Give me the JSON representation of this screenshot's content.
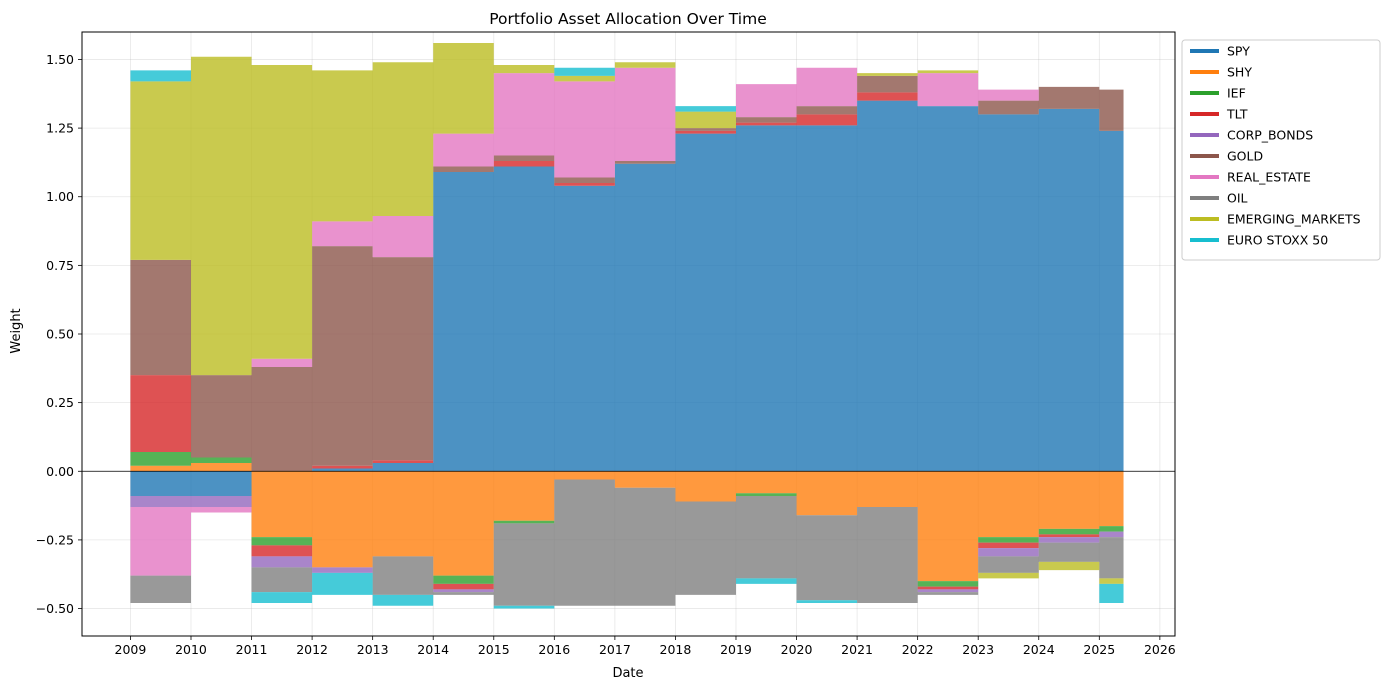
{
  "chart_data": {
    "type": "area",
    "title": "Portfolio Asset Allocation Over Time",
    "xlabel": "Date",
    "ylabel": "Weight",
    "xlim": [
      2008.2,
      2026.25
    ],
    "ylim": [
      -0.6,
      1.6
    ],
    "x_ticks": [
      "2009",
      "2010",
      "2011",
      "2012",
      "2013",
      "2014",
      "2015",
      "2016",
      "2017",
      "2018",
      "2019",
      "2020",
      "2021",
      "2022",
      "2023",
      "2024",
      "2025",
      "2026"
    ],
    "y_ticks": [
      "−0.50",
      "−0.25",
      "0.00",
      "0.25",
      "0.50",
      "0.75",
      "1.00",
      "1.25",
      "1.50"
    ],
    "grid": true,
    "legend_position": "outside-top-right",
    "x": [
      2009.0,
      2010.0,
      2011.0,
      2012.0,
      2013.0,
      2014.0,
      2015.0,
      2016.0,
      2017.0,
      2018.0,
      2019.0,
      2020.0,
      2021.0,
      2022.0,
      2023.0,
      2024.0,
      2025.0,
      2025.4
    ],
    "series": [
      {
        "name": "SPY",
        "color": "#1f77b4",
        "values": [
          -0.09,
          -0.09,
          0.0,
          0.01,
          0.03,
          1.09,
          1.11,
          1.04,
          1.12,
          1.23,
          1.26,
          1.26,
          1.35,
          1.33,
          1.3,
          1.32,
          1.24,
          1.24
        ]
      },
      {
        "name": "SHY",
        "color": "#ff7f0e",
        "values": [
          0.02,
          0.03,
          -0.24,
          -0.35,
          -0.31,
          -0.38,
          -0.18,
          -0.03,
          -0.06,
          -0.11,
          -0.08,
          -0.16,
          -0.13,
          -0.4,
          -0.24,
          -0.21,
          -0.2,
          -0.2
        ]
      },
      {
        "name": "IEF",
        "color": "#2ca02c",
        "values": [
          0.05,
          0.02,
          -0.03,
          0.0,
          0.0,
          -0.03,
          -0.01,
          0.0,
          0.0,
          0.0,
          -0.01,
          0.0,
          0.0,
          -0.02,
          -0.02,
          -0.02,
          -0.02,
          -0.02
        ]
      },
      {
        "name": "TLT",
        "color": "#d62728",
        "values": [
          0.28,
          0.0,
          -0.04,
          0.01,
          0.01,
          -0.02,
          0.02,
          0.01,
          0.0,
          0.01,
          0.01,
          0.04,
          0.03,
          -0.01,
          -0.02,
          -0.01,
          0.0,
          0.0
        ]
      },
      {
        "name": "CORP_BONDS",
        "color": "#9467bd",
        "values": [
          -0.04,
          -0.04,
          -0.04,
          -0.02,
          0.0,
          -0.01,
          0.0,
          0.0,
          0.0,
          0.0,
          0.0,
          0.0,
          0.0,
          -0.01,
          -0.03,
          -0.02,
          -0.02,
          -0.02
        ]
      },
      {
        "name": "GOLD",
        "color": "#8c564b",
        "values": [
          0.42,
          0.3,
          0.38,
          0.8,
          0.74,
          0.02,
          0.02,
          0.02,
          0.01,
          0.01,
          0.02,
          0.03,
          0.06,
          0.0,
          0.05,
          0.08,
          0.15,
          0.22
        ]
      },
      {
        "name": "REAL_ESTATE",
        "color": "#e377c2",
        "values": [
          -0.25,
          -0.02,
          0.03,
          0.09,
          0.15,
          0.12,
          0.3,
          0.35,
          0.34,
          0.0,
          0.12,
          0.14,
          0.0,
          0.12,
          0.04,
          0.0,
          0.0,
          0.0
        ]
      },
      {
        "name": "OIL",
        "color": "#7f7f7f",
        "values": [
          -0.1,
          0.0,
          -0.09,
          0.0,
          -0.14,
          -0.01,
          -0.3,
          -0.46,
          -0.43,
          -0.34,
          -0.3,
          -0.31,
          -0.35,
          -0.01,
          -0.06,
          -0.07,
          -0.15,
          -0.15
        ]
      },
      {
        "name": "EMERGING_MARKETS",
        "color": "#bcbd22",
        "values": [
          0.65,
          1.16,
          1.07,
          0.55,
          0.56,
          0.33,
          0.03,
          0.02,
          0.02,
          0.06,
          0.0,
          0.0,
          0.01,
          0.01,
          -0.02,
          -0.03,
          -0.02,
          -0.02
        ]
      },
      {
        "name": "EURO STOXX 50",
        "color": "#17becf",
        "values": [
          0.04,
          0.0,
          -0.04,
          -0.08,
          -0.04,
          0.0,
          -0.01,
          0.03,
          0.0,
          0.02,
          -0.02,
          -0.01,
          0.0,
          0.0,
          0.0,
          0.0,
          -0.07,
          -0.07
        ]
      }
    ]
  }
}
